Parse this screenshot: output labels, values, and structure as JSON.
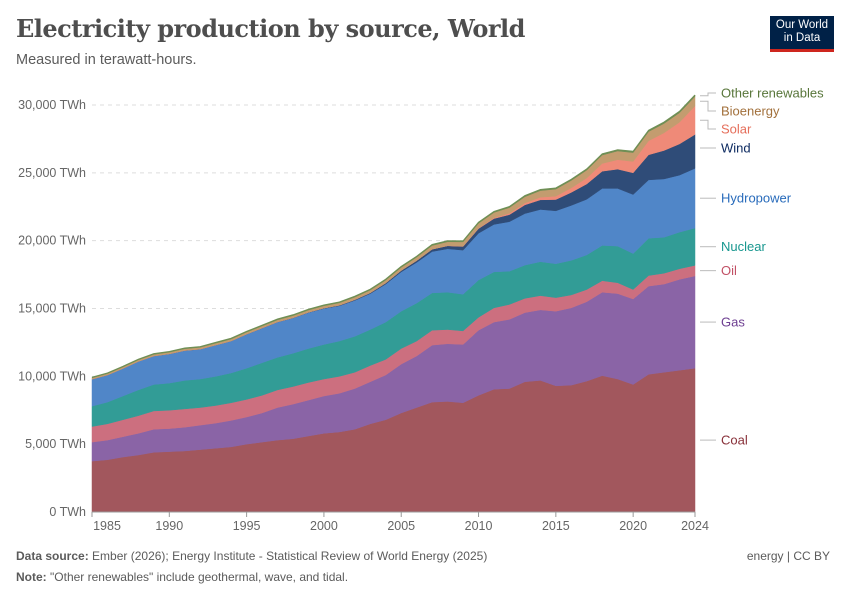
{
  "header": {
    "title": "Electricity production by source, World",
    "subtitle": "Measured in terawatt-hours.",
    "logo_text": "Our World in Data"
  },
  "footer": {
    "source_label": "Data source:",
    "source": "Ember (2026); Energy Institute - Statistical Review of World Energy (2025)",
    "note_label": "Note:",
    "note": "\"Other renewables\" include geothermal, wave, and tidal.",
    "license": "energy | CC BY"
  },
  "chart_data": {
    "type": "area",
    "stacked": true,
    "title": "Electricity production by source, World",
    "ylabel": "",
    "xlabel": "",
    "xlim": [
      1985,
      2024
    ],
    "ylim": [
      0,
      31000
    ],
    "x_ticks": [
      "1985",
      "1990",
      "1995",
      "2000",
      "2005",
      "2010",
      "2015",
      "2020",
      "2024"
    ],
    "y_ticks": [
      "0 TWh",
      "5,000 TWh",
      "10,000 TWh",
      "15,000 TWh",
      "20,000 TWh",
      "25,000 TWh",
      "30,000 TWh"
    ],
    "y_tick_values": [
      0,
      5000,
      10000,
      15000,
      20000,
      25000,
      30000
    ],
    "grid": "horizontal dashed",
    "legend": "right, inline labels",
    "x": [
      1985,
      1986,
      1987,
      1988,
      1989,
      1990,
      1991,
      1992,
      1993,
      1994,
      1995,
      1996,
      1997,
      1998,
      1999,
      2000,
      2001,
      2002,
      2003,
      2004,
      2005,
      2006,
      2007,
      2008,
      2009,
      2010,
      2011,
      2012,
      2013,
      2014,
      2015,
      2016,
      2017,
      2018,
      2019,
      2020,
      2021,
      2022,
      2023,
      2024
    ],
    "series": [
      {
        "name": "Coal",
        "color": "#a2575d",
        "label_color": "#883039",
        "values": [
          3750,
          3850,
          4050,
          4200,
          4400,
          4450,
          4500,
          4600,
          4700,
          4800,
          5000,
          5150,
          5300,
          5400,
          5600,
          5800,
          5900,
          6100,
          6500,
          6800,
          7300,
          7700,
          8100,
          8150,
          8050,
          8600,
          9050,
          9100,
          9600,
          9700,
          9300,
          9350,
          9650,
          10050,
          9800,
          9400,
          10150,
          10300,
          10450,
          10600
        ]
      },
      {
        "name": "Gas",
        "color": "#8a64a6",
        "label_color": "#6d3e91",
        "values": [
          1400,
          1450,
          1500,
          1600,
          1700,
          1700,
          1750,
          1800,
          1850,
          1950,
          2000,
          2150,
          2400,
          2550,
          2650,
          2750,
          2850,
          3000,
          3100,
          3300,
          3600,
          3800,
          4200,
          4250,
          4300,
          4800,
          4950,
          5100,
          5100,
          5200,
          5500,
          5700,
          5850,
          6150,
          6300,
          6300,
          6500,
          6500,
          6700,
          6800
        ]
      },
      {
        "name": "Oil",
        "color": "#cc6f7f",
        "label_color": "#c15065",
        "values": [
          1150,
          1200,
          1250,
          1300,
          1350,
          1350,
          1350,
          1300,
          1300,
          1300,
          1300,
          1300,
          1300,
          1300,
          1300,
          1250,
          1250,
          1200,
          1200,
          1150,
          1150,
          1100,
          1100,
          1050,
          1000,
          950,
          1050,
          1100,
          1050,
          1050,
          1000,
          950,
          900,
          850,
          800,
          700,
          780,
          800,
          780,
          780
        ]
      },
      {
        "name": "Nuclear",
        "color": "#329c96",
        "label_color": "#18978f",
        "values": [
          1500,
          1600,
          1750,
          1900,
          1950,
          2000,
          2100,
          2100,
          2150,
          2200,
          2300,
          2400,
          2400,
          2450,
          2500,
          2550,
          2600,
          2650,
          2650,
          2750,
          2750,
          2800,
          2750,
          2750,
          2700,
          2750,
          2650,
          2450,
          2450,
          2500,
          2500,
          2550,
          2550,
          2600,
          2700,
          2650,
          2750,
          2650,
          2700,
          2750
        ]
      },
      {
        "name": "Hydropower",
        "color": "#5086c8",
        "label_color": "#286bbb",
        "values": [
          1990,
          2000,
          2030,
          2100,
          2100,
          2150,
          2200,
          2200,
          2300,
          2350,
          2500,
          2550,
          2600,
          2600,
          2650,
          2650,
          2600,
          2650,
          2650,
          2800,
          2900,
          3000,
          3050,
          3200,
          3250,
          3450,
          3500,
          3650,
          3800,
          3850,
          3900,
          4050,
          4100,
          4200,
          4250,
          4350,
          4300,
          4300,
          4200,
          4400
        ]
      },
      {
        "name": "Wind",
        "color": "#2f4c78",
        "label_color": "#0e2b61",
        "values": [
          0,
          0,
          0,
          0,
          0,
          5,
          5,
          5,
          5,
          5,
          10,
          10,
          10,
          15,
          20,
          30,
          40,
          50,
          60,
          80,
          100,
          130,
          170,
          220,
          270,
          340,
          430,
          520,
          640,
          710,
          830,
          960,
          1130,
          1270,
          1420,
          1600,
          1850,
          2100,
          2300,
          2500
        ]
      },
      {
        "name": "Solar",
        "color": "#ef8a78",
        "label_color": "#e56e5a",
        "values": [
          0,
          0,
          0,
          0,
          0,
          0,
          0,
          0,
          0,
          0,
          0,
          0,
          0,
          0,
          0,
          0,
          0,
          0,
          0,
          0,
          2,
          3,
          5,
          10,
          20,
          30,
          60,
          100,
          140,
          190,
          250,
          330,
          440,
          570,
          700,
          840,
          1030,
          1300,
          1600,
          2100
        ]
      },
      {
        "name": "Bioenergy",
        "color": "#c39c6f",
        "label_color": "#a2703b",
        "values": [
          100,
          105,
          110,
          115,
          120,
          125,
          130,
          135,
          140,
          145,
          150,
          150,
          155,
          160,
          165,
          170,
          180,
          190,
          200,
          215,
          230,
          250,
          270,
          290,
          320,
          360,
          390,
          420,
          460,
          490,
          520,
          550,
          580,
          620,
          640,
          650,
          680,
          690,
          700,
          700
        ]
      },
      {
        "name": "Other renewables",
        "color": "#6f8f55",
        "label_color": "#58763a",
        "values": [
          35,
          37,
          39,
          41,
          43,
          45,
          46,
          47,
          48,
          50,
          52,
          52,
          53,
          54,
          55,
          56,
          57,
          58,
          59,
          60,
          62,
          63,
          64,
          65,
          66,
          68,
          70,
          72,
          74,
          76,
          78,
          80,
          83,
          86,
          88,
          90,
          92,
          95,
          98,
          100
        ]
      }
    ]
  }
}
